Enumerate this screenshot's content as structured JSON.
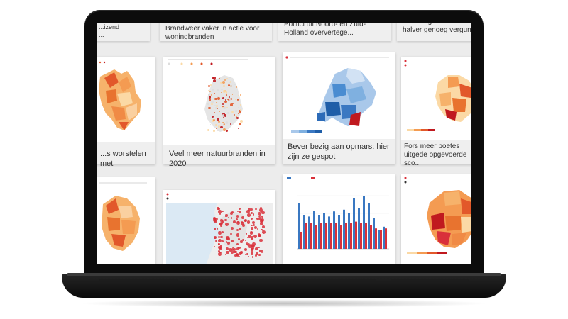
{
  "screen": {
    "top_row": [
      {
        "title": "...izend\n..."
      },
      {
        "title": "Brandweer vaker in actie voor woningbranden"
      },
      {
        "title": "Politici uit Noord- en Zuid-Holland oververtege..."
      },
      {
        "title": "Meeste gemeenten halver genoeg vergunn..."
      }
    ],
    "middle_row": [
      {
        "title": "...s worstelen met"
      },
      {
        "title": "Veel meer natuurbranden in 2020"
      },
      {
        "title": "Bever bezig aan opmars: hier zijn ze gespot"
      },
      {
        "title": "Fors meer boetes uitgede opgevoerde sco..."
      }
    ],
    "bottom_row": [
      {
        "title": ""
      },
      {
        "title": ""
      },
      {
        "title": ""
      },
      {
        "title": ""
      }
    ]
  },
  "colors": {
    "orange_light": "#fbd9a5",
    "orange_mid": "#f49b52",
    "orange_dark": "#e2582a",
    "red_dark": "#c0191f",
    "blue_light": "#a9c8ea",
    "blue_mid": "#4a8cd1",
    "blue_dark": "#1f5ea8",
    "bar_blue": "#3a78c2",
    "bar_red": "#d9303a",
    "map_sea": "#dbe9f4"
  },
  "icons": [
    "laptop-device"
  ]
}
